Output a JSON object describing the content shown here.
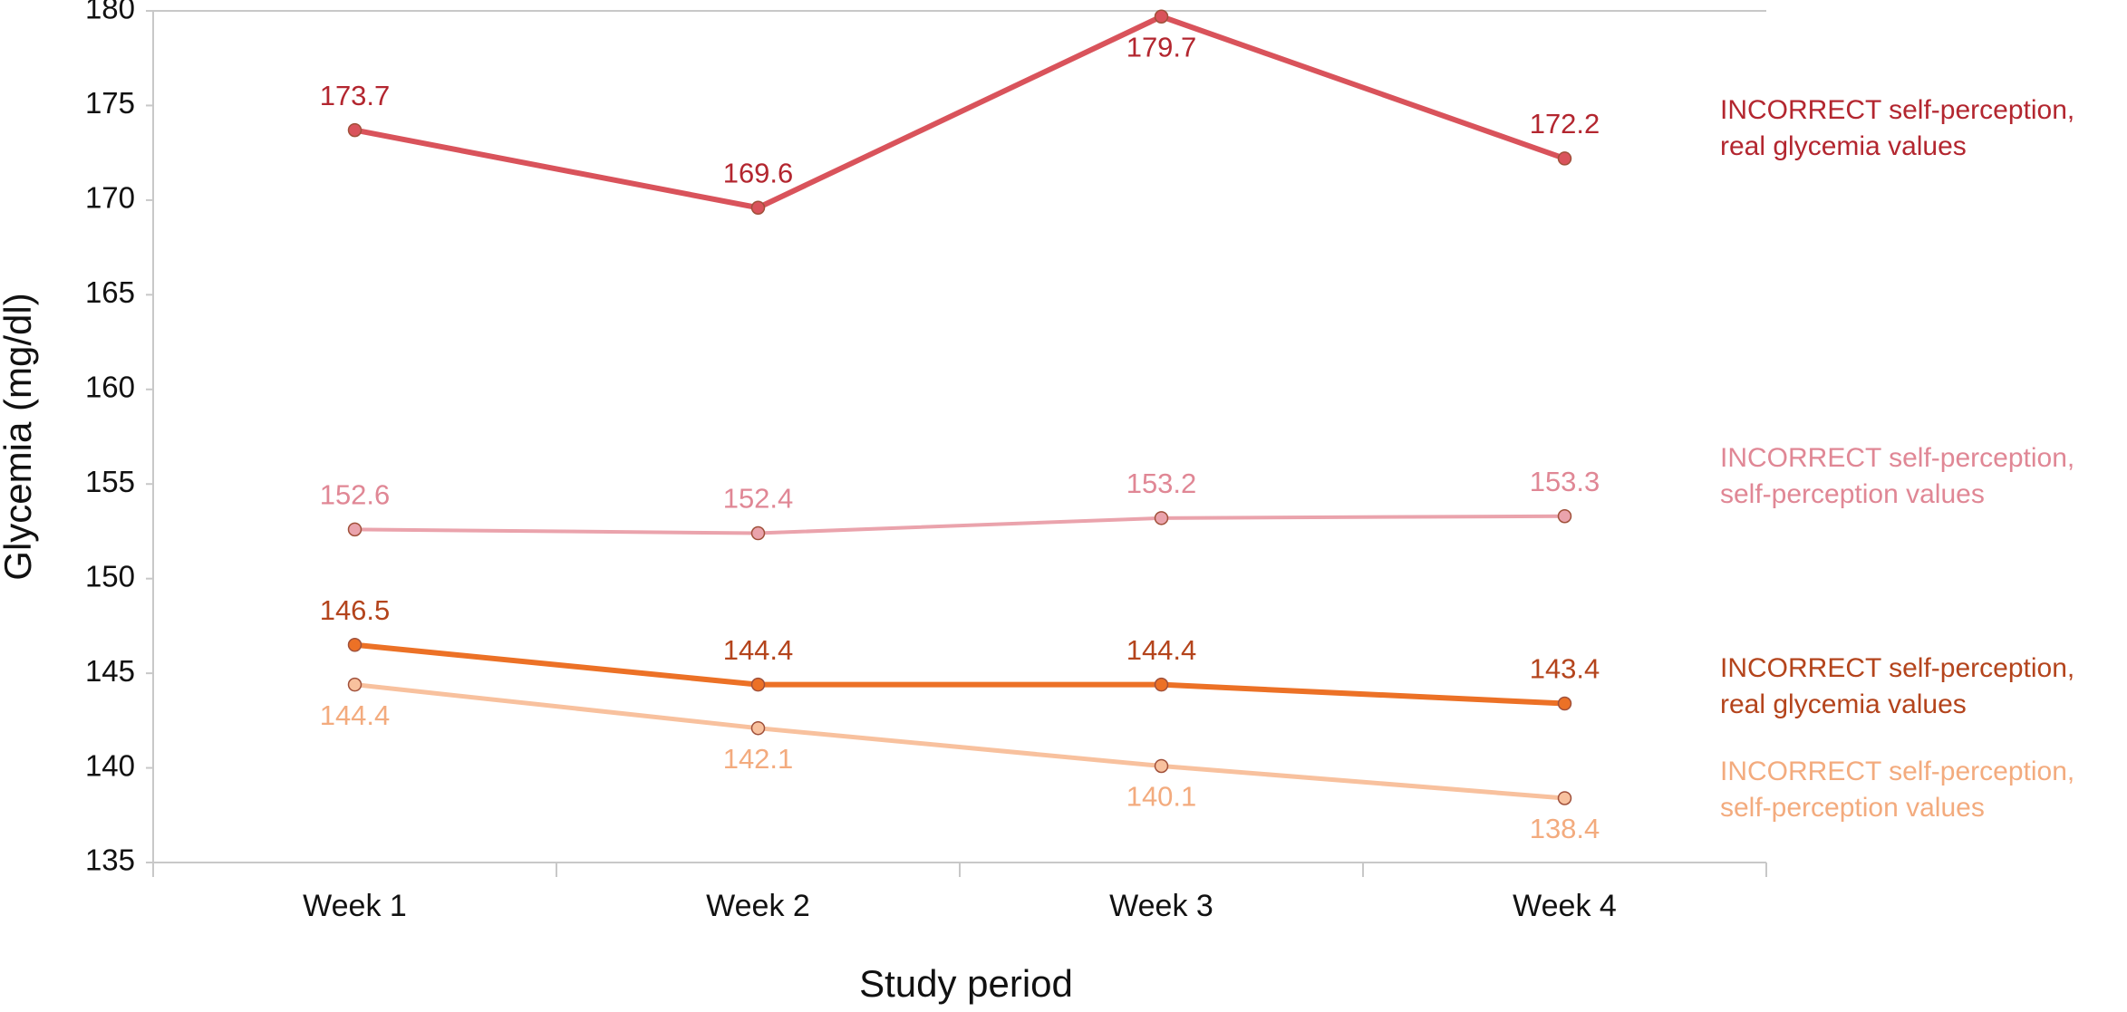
{
  "chart_data": {
    "type": "line",
    "x_label": "Study period",
    "y_label": "Glycemia (mg/dl)",
    "categories": [
      "Week 1",
      "Week 2",
      "Week 3",
      "Week 4"
    ],
    "series": [
      {
        "name": "INCORRECT self-perception,\nreal glycemia values",
        "color": "#d9535b",
        "label_color": "#b3262f",
        "values": [
          173.7,
          169.6,
          179.7,
          172.2
        ]
      },
      {
        "name": "INCORRECT self-perception,\nself-perception values",
        "color": "#eaa3ac",
        "label_color": "#e08795",
        "values": [
          152.6,
          152.4,
          153.2,
          153.3
        ]
      },
      {
        "name": "INCORRECT self-perception,\nreal glycemia values",
        "color": "#ec7126",
        "label_color": "#b4441c",
        "values": [
          146.5,
          144.4,
          144.4,
          143.4
        ]
      },
      {
        "name": "INCORRECT self-perception,\nself-perception values",
        "color": "#f8c19e",
        "label_color": "#f3ab7e",
        "values": [
          144.4,
          142.1,
          140.1,
          138.4
        ]
      }
    ],
    "ylim": [
      135,
      180
    ],
    "yticks": [
      135,
      140,
      145,
      150,
      155,
      160,
      165,
      170,
      175,
      180
    ],
    "grid": false
  }
}
